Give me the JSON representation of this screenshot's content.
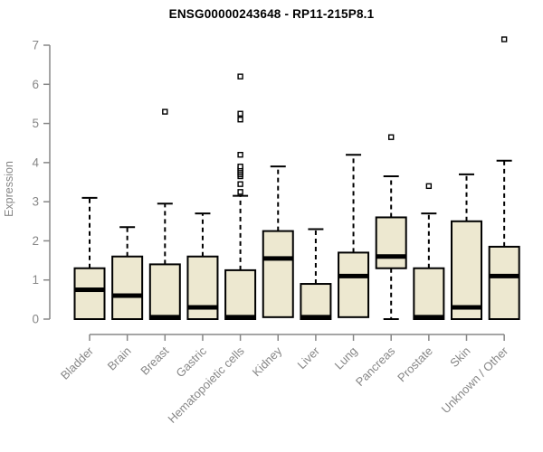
{
  "chart_data": {
    "type": "boxplot",
    "title": "ENSG00000243648 - RP11-215P8.1",
    "ylabel": "Expression",
    "xlabel": "",
    "ylim": [
      0,
      7
    ],
    "yticks": [
      0,
      1,
      2,
      3,
      4,
      5,
      6,
      7
    ],
    "grid": false,
    "legend": false,
    "categories": [
      "Bladder",
      "Brain",
      "Breast",
      "Gastric",
      "Hematopoietic cells",
      "Kidney",
      "Liver",
      "Lung",
      "Pancreas",
      "Prostate",
      "Skin",
      "Unknown / Other"
    ],
    "boxes": [
      {
        "category": "Bladder",
        "whisker_low": 0,
        "q1": 0,
        "median": 0.75,
        "q3": 1.3,
        "whisker_high": 3.1,
        "outliers": []
      },
      {
        "category": "Brain",
        "whisker_low": 0,
        "q1": 0,
        "median": 0.6,
        "q3": 1.6,
        "whisker_high": 2.35,
        "outliers": []
      },
      {
        "category": "Breast",
        "whisker_low": 0,
        "q1": 0,
        "median": 0.05,
        "q3": 1.4,
        "whisker_high": 2.95,
        "outliers": [
          5.3
        ]
      },
      {
        "category": "Gastric",
        "whisker_low": 0,
        "q1": 0,
        "median": 0.3,
        "q3": 1.6,
        "whisker_high": 2.7,
        "outliers": []
      },
      {
        "category": "Hematopoietic cells",
        "whisker_low": 0,
        "q1": 0,
        "median": 0.05,
        "q3": 1.25,
        "whisker_high": 3.15,
        "outliers": [
          3.25,
          3.45,
          3.65,
          3.7,
          3.75,
          3.8,
          3.85,
          3.9,
          4.2,
          5.1,
          5.25,
          6.2
        ]
      },
      {
        "category": "Kidney",
        "whisker_low": 0.05,
        "q1": 0.05,
        "median": 1.55,
        "q3": 2.25,
        "whisker_high": 3.9,
        "outliers": []
      },
      {
        "category": "Liver",
        "whisker_low": 0,
        "q1": 0,
        "median": 0.05,
        "q3": 0.9,
        "whisker_high": 2.3,
        "outliers": []
      },
      {
        "category": "Lung",
        "whisker_low": 0.05,
        "q1": 0.05,
        "median": 1.1,
        "q3": 1.7,
        "whisker_high": 4.2,
        "outliers": []
      },
      {
        "category": "Pancreas",
        "whisker_low": 0,
        "q1": 1.3,
        "median": 1.6,
        "q3": 2.6,
        "whisker_high": 3.65,
        "outliers": [
          4.65
        ]
      },
      {
        "category": "Prostate",
        "whisker_low": 0,
        "q1": 0,
        "median": 0.05,
        "q3": 1.3,
        "whisker_high": 2.7,
        "outliers": [
          3.4
        ]
      },
      {
        "category": "Skin",
        "whisker_low": 0,
        "q1": 0,
        "median": 0.3,
        "q3": 2.5,
        "whisker_high": 3.7,
        "outliers": []
      },
      {
        "category": "Unknown / Other",
        "whisker_low": 0,
        "q1": 0,
        "median": 1.1,
        "q3": 1.85,
        "whisker_high": 4.05,
        "outliers": [
          7.15
        ]
      }
    ],
    "colors": {
      "box_fill": "#ede8d0",
      "box_stroke": "#000000",
      "median": "#000000",
      "whisker": "#000000",
      "outlier_fill": "#ffffff",
      "axis": "#878787",
      "tick_label": "#878787",
      "title": "#000000"
    }
  }
}
